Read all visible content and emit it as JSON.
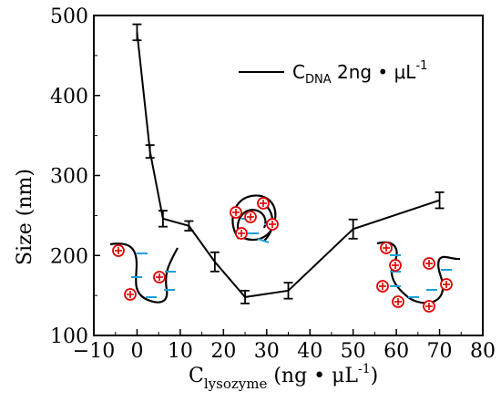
{
  "chart_data": {
    "type": "line",
    "title": "",
    "xlabel": {
      "main": "C",
      "sub": "lysozyme",
      "tail": " (ng • μL",
      "sup": "-1",
      "close": ")"
    },
    "ylabel": "Size (nm)",
    "xlim": [
      -10,
      80
    ],
    "ylim": [
      100,
      500
    ],
    "xticks": [
      -10,
      0,
      10,
      20,
      30,
      40,
      50,
      60,
      70,
      80
    ],
    "yticks": [
      100,
      200,
      300,
      400,
      500
    ],
    "legend_position": "top-right",
    "series": [
      {
        "name": {
          "main": "C",
          "sub": "DNA",
          "tail": "  2ng • μL",
          "sup": "-1"
        },
        "color": "#000000",
        "x": [
          0,
          3,
          6,
          12,
          18,
          25,
          35,
          50,
          70
        ],
        "y": [
          479,
          330,
          246,
          237,
          192,
          148,
          156,
          233,
          269
        ],
        "err": [
          10,
          8,
          10,
          6,
          12,
          8,
          10,
          12,
          10
        ]
      }
    ],
    "illustrations": [
      {
        "name": "extended-dna-strand",
        "near_x": 6,
        "near_y": 175
      },
      {
        "name": "condensed-dna-complex",
        "near_x": 28,
        "near_y": 240
      },
      {
        "name": "loose-dna-complex",
        "near_x": 68,
        "near_y": 175
      }
    ]
  }
}
